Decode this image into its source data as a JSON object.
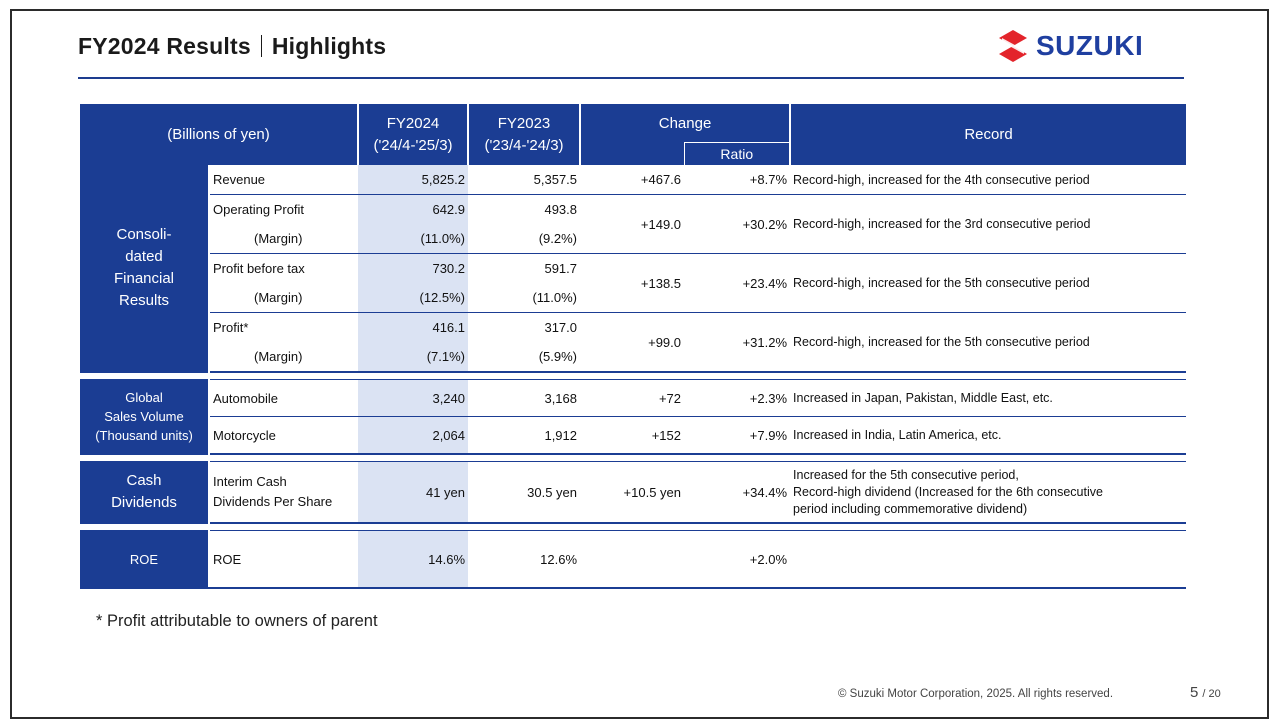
{
  "header": {
    "title_main": "FY2024 Results",
    "title_sub": "Highlights",
    "logo_text": "SUZUKI",
    "brand_color": "#1b3d93",
    "logo_mark_color": "#e3242b"
  },
  "table": {
    "columns": {
      "unit": "(Billions of yen)",
      "fy2024": "FY2024",
      "fy2024_period": "('24/4-'25/3)",
      "fy2023": "FY2023",
      "fy2023_period": "('23/4-'24/3)",
      "change": "Change",
      "ratio": "Ratio",
      "record": "Record"
    },
    "groups": {
      "consolidated": "Consoli-\ndated\nFinancial\nResults",
      "global_sales": "Global\nSales Volume\n(Thousand units)",
      "cash_dividends": "Cash\nDividends",
      "roe": "ROE"
    },
    "rows": {
      "revenue": {
        "label": "Revenue",
        "fy2024": "5,825.2",
        "fy2023": "5,357.5",
        "change": "+467.6",
        "ratio": "+8.7%",
        "record": "Record-high, increased for the 4th consecutive period"
      },
      "operating_profit": {
        "label": "Operating Profit",
        "fy2024": "642.9",
        "fy2023": "493.8",
        "change": "+149.0",
        "ratio": "+30.2%",
        "record": "Record-high, increased for the 3rd consecutive period"
      },
      "operating_margin": {
        "label": "(Margin)",
        "fy2024": "(11.0%)",
        "fy2023": "(9.2%)"
      },
      "profit_before_tax": {
        "label": "Profit before tax",
        "fy2024": "730.2",
        "fy2023": "591.7",
        "change": "+138.5",
        "ratio": "+23.4%",
        "record": "Record-high, increased for the 5th consecutive period"
      },
      "pbt_margin": {
        "label": "(Margin)",
        "fy2024": "(12.5%)",
        "fy2023": "(11.0%)"
      },
      "profit": {
        "label": "Profit*",
        "fy2024": "416.1",
        "fy2023": "317.0",
        "change": "+99.0",
        "ratio": "+31.2%",
        "record": "Record-high, increased for the 5th consecutive period"
      },
      "profit_margin": {
        "label": "(Margin)",
        "fy2024": "(7.1%)",
        "fy2023": "(5.9%)"
      },
      "automobile": {
        "label": "Automobile",
        "fy2024": "3,240",
        "fy2023": "3,168",
        "change": "+72",
        "ratio": "+2.3%",
        "record": "Increased in Japan, Pakistan, Middle East, etc."
      },
      "motorcycle": {
        "label": "Motorcycle",
        "fy2024": "2,064",
        "fy2023": "1,912",
        "change": "+152",
        "ratio": "+7.9%",
        "record": "Increased in India, Latin America, etc."
      },
      "dividends": {
        "label": "Interim Cash\nDividends Per Share",
        "fy2024": "41 yen",
        "fy2023": "30.5 yen",
        "change": "+10.5 yen",
        "ratio": "+34.4%",
        "record": "Increased for the 5th consecutive period,\nRecord-high dividend (Increased for the 6th consecutive\nperiod including commemorative dividend)"
      },
      "roe": {
        "label": "ROE",
        "fy2024": "14.6%",
        "fy2023": "12.6%",
        "change": "",
        "ratio": "+2.0%",
        "record": ""
      }
    }
  },
  "footnote": "* Profit attributable to owners of parent",
  "footer": {
    "copyright": "© Suzuki Motor Corporation, 2025. All rights reserved.",
    "page": "5",
    "total": "/ 20"
  }
}
